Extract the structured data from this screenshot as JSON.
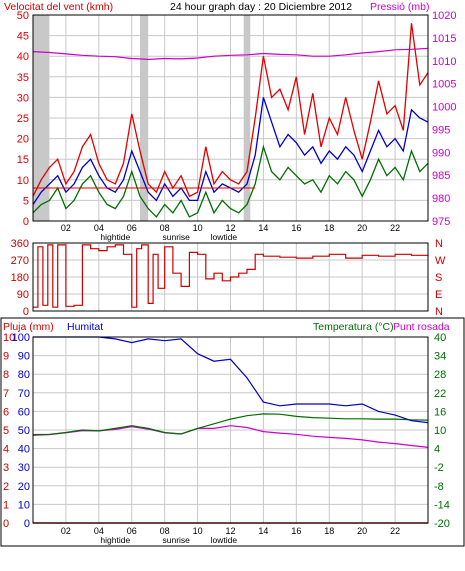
{
  "header": {
    "wind_label": "Velocitat del vent (kmh)",
    "title": "24 hour graph day : 20 Diciembre 2012",
    "pressure_label": "Pressió (mb)"
  },
  "panel3_header": {
    "rain_label": "Pluja (mm)",
    "humidity_label": "Humitat",
    "temp_label": "Temperatura (°C)",
    "dew_label": "Punt rosada"
  },
  "colors": {
    "wind_gust": "#e00000",
    "wind_avg": "#0000c8",
    "wind_low": "#006e00",
    "pressure": "#cc00cc",
    "direction": "#cc0000",
    "humidity": "#0000c8",
    "temperature": "#006e00",
    "dew_point": "#cc00cc",
    "rain": "#cc0000",
    "grid": "#c8c8c8",
    "night": "#c8c8c8"
  },
  "x_ticks": [
    "02",
    "04",
    "06",
    "08",
    "10",
    "12",
    "14",
    "16",
    "18",
    "20",
    "22"
  ],
  "markers": {
    "hightide": "hightide",
    "sunrise": "sunrise",
    "lowtide": "lowtide"
  },
  "chart_data": [
    {
      "type": "line",
      "name": "wind_pressure",
      "x_unit": "hour",
      "x_range": [
        0,
        24
      ],
      "y_left": {
        "label": "Velocitat del vent (kmh)",
        "range": [
          0,
          50
        ],
        "ticks": [
          0,
          5,
          10,
          15,
          20,
          25,
          30,
          35,
          40,
          45,
          50
        ]
      },
      "y_right": {
        "label": "Pressió (mb)",
        "range": [
          975,
          1020
        ],
        "ticks": [
          975,
          980,
          985,
          990,
          995,
          1000,
          1005,
          1010,
          1015,
          1020
        ]
      },
      "gust_x": [
        0,
        0.5,
        1,
        1.5,
        2,
        2.5,
        3,
        3.5,
        4,
        4.5,
        5,
        5.5,
        6,
        6.5,
        7,
        7.5,
        8,
        8.5,
        9,
        9.5,
        10,
        10.5,
        11,
        11.5,
        12,
        12.5,
        13,
        13.5,
        14,
        14.5,
        15,
        15.5,
        16,
        16.5,
        17,
        17.5,
        18,
        18.5,
        19,
        19.5,
        20,
        20.5,
        21,
        21.5,
        22,
        22.5,
        23,
        23.5,
        24
      ],
      "gust": [
        6,
        10,
        13,
        15,
        9,
        12,
        18,
        21,
        14,
        10,
        9,
        14,
        26,
        17,
        9,
        7,
        12,
        8,
        11,
        6,
        7,
        18,
        9,
        12,
        10,
        9,
        12,
        25,
        40,
        30,
        32,
        27,
        35,
        21,
        31,
        18,
        25,
        21,
        30,
        22,
        15,
        24,
        34,
        26,
        28,
        22,
        48,
        33,
        36
      ],
      "avg_x": [
        0,
        0.5,
        1,
        1.5,
        2,
        2.5,
        3,
        3.5,
        4,
        4.5,
        5,
        5.5,
        6,
        6.5,
        7,
        7.5,
        8,
        8.5,
        9,
        9.5,
        10,
        10.5,
        11,
        11.5,
        12,
        12.5,
        13,
        13.5,
        14,
        14.5,
        15,
        15.5,
        16,
        16.5,
        17,
        17.5,
        18,
        18.5,
        19,
        19.5,
        20,
        20.5,
        21,
        21.5,
        22,
        22.5,
        23,
        23.5,
        24
      ],
      "avg": [
        4,
        7,
        9,
        11,
        7,
        9,
        13,
        15,
        11,
        8,
        7,
        10,
        17,
        12,
        7,
        5,
        9,
        6,
        8,
        5,
        5,
        12,
        7,
        9,
        8,
        7,
        9,
        16,
        30,
        24,
        18,
        21,
        19,
        16,
        18,
        14,
        17,
        15,
        18,
        16,
        12,
        17,
        22,
        18,
        20,
        17,
        27,
        25,
        24
      ],
      "low_x": [
        0,
        0.5,
        1,
        1.5,
        2,
        2.5,
        3,
        3.5,
        4,
        4.5,
        5,
        5.5,
        6,
        6.5,
        7,
        7.5,
        8,
        8.5,
        9,
        9.5,
        10,
        10.5,
        11,
        11.5,
        12,
        12.5,
        13,
        13.5,
        14,
        14.5,
        15,
        15.5,
        16,
        16.5,
        17,
        17.5,
        18,
        18.5,
        19,
        19.5,
        20,
        20.5,
        21,
        21.5,
        22,
        22.5,
        23,
        23.5,
        24
      ],
      "low": [
        2,
        4,
        5,
        8,
        3,
        5,
        9,
        11,
        7,
        4,
        3,
        6,
        12,
        6,
        3,
        1,
        4,
        2,
        5,
        1,
        2,
        7,
        2,
        5,
        3,
        2,
        4,
        9,
        18,
        12,
        10,
        13,
        11,
        9,
        10,
        7,
        11,
        9,
        12,
        10,
        6,
        10,
        15,
        11,
        13,
        10,
        17,
        12,
        14
      ],
      "pressure_x": [
        0,
        1,
        2,
        3,
        4,
        5,
        6,
        7,
        8,
        9,
        10,
        11,
        12,
        13,
        14,
        15,
        16,
        17,
        18,
        19,
        20,
        21,
        22,
        23,
        24
      ],
      "pressure": [
        1012,
        1011.8,
        1011.5,
        1011.2,
        1011,
        1010.9,
        1010.5,
        1010.3,
        1010.5,
        1010.4,
        1010.6,
        1011,
        1011.2,
        1011.3,
        1011.6,
        1011.4,
        1011.3,
        1011,
        1011,
        1011.3,
        1011.7,
        1012,
        1012.4,
        1012.5,
        1012.7
      ],
      "night_bands": [
        [
          0,
          1
        ],
        [
          6.5,
          7
        ],
        [
          12.8,
          13.2
        ]
      ]
    },
    {
      "type": "line",
      "name": "wind_direction",
      "x_range": [
        0,
        24
      ],
      "y_left": {
        "range": [
          0,
          360
        ],
        "ticks": [
          0,
          90,
          180,
          270,
          360
        ]
      },
      "y_right_labels": [
        "N",
        "W",
        "S",
        "E",
        "N"
      ],
      "x": [
        0,
        0.3,
        0.6,
        0.9,
        1.2,
        1.5,
        2,
        2.5,
        3,
        3.5,
        4,
        4.5,
        5,
        5.5,
        6,
        6.3,
        6.6,
        7,
        7.3,
        7.6,
        8,
        8.5,
        9,
        9.5,
        10,
        10.5,
        11,
        11.5,
        12,
        12.5,
        13,
        13.5,
        14,
        15,
        16,
        17,
        18,
        19,
        20,
        21,
        22,
        23,
        24
      ],
      "direction": [
        20,
        340,
        30,
        350,
        20,
        350,
        25,
        30,
        350,
        330,
        320,
        340,
        350,
        300,
        20,
        330,
        350,
        40,
        300,
        120,
        340,
        200,
        130,
        310,
        300,
        170,
        200,
        160,
        180,
        200,
        220,
        300,
        290,
        285,
        280,
        290,
        300,
        280,
        295,
        290,
        300,
        295,
        290
      ]
    },
    {
      "type": "line",
      "name": "temp_humidity",
      "x_range": [
        0,
        24
      ],
      "y_rain": {
        "label": "Pluja (mm)",
        "range": [
          0,
          10
        ],
        "ticks": [
          0,
          1,
          2,
          3,
          4,
          5,
          6,
          7,
          8,
          9,
          10
        ]
      },
      "y_humidity": {
        "label": "Humitat",
        "range": [
          0,
          100
        ],
        "ticks": [
          0,
          10,
          20,
          30,
          40,
          50,
          60,
          70,
          80,
          90,
          100
        ]
      },
      "y_temp": {
        "label": "Temperatura (°C)",
        "range": [
          -20,
          40
        ],
        "ticks": [
          -20,
          -14,
          -8,
          -2,
          4,
          10,
          16,
          22,
          28,
          34,
          40
        ]
      },
      "x": [
        0,
        1,
        2,
        3,
        4,
        5,
        6,
        7,
        8,
        9,
        10,
        11,
        12,
        13,
        14,
        15,
        16,
        17,
        18,
        19,
        20,
        21,
        22,
        23,
        24
      ],
      "humidity": [
        100,
        100,
        100,
        100,
        100,
        99,
        97,
        99,
        98,
        99,
        91,
        87,
        88,
        78,
        65,
        63,
        64,
        64,
        64,
        63,
        64,
        60,
        58,
        55,
        54
      ],
      "temperature": [
        8.5,
        8.6,
        9.2,
        10,
        9.7,
        10.5,
        11.4,
        10.5,
        9.2,
        8.7,
        10.5,
        12,
        13.5,
        14.6,
        15.2,
        15.1,
        14.4,
        14,
        13.8,
        13.6,
        13.6,
        13.5,
        13.5,
        13.3,
        13.2
      ],
      "dew_point": [
        8.3,
        8.5,
        9.1,
        9.8,
        9.7,
        10.2,
        11.1,
        10.3,
        9.1,
        8.7,
        10.5,
        10.5,
        11.4,
        10.8,
        9.5,
        9,
        8.6,
        8,
        7.6,
        7.3,
        6.8,
        6.1,
        5.6,
        5,
        4.4
      ],
      "rain": [
        0,
        0,
        0,
        0,
        0,
        0,
        0,
        0,
        0,
        0,
        0,
        0,
        0,
        0,
        0,
        0,
        0,
        0,
        0,
        0,
        0,
        0,
        0,
        0,
        0
      ]
    }
  ]
}
